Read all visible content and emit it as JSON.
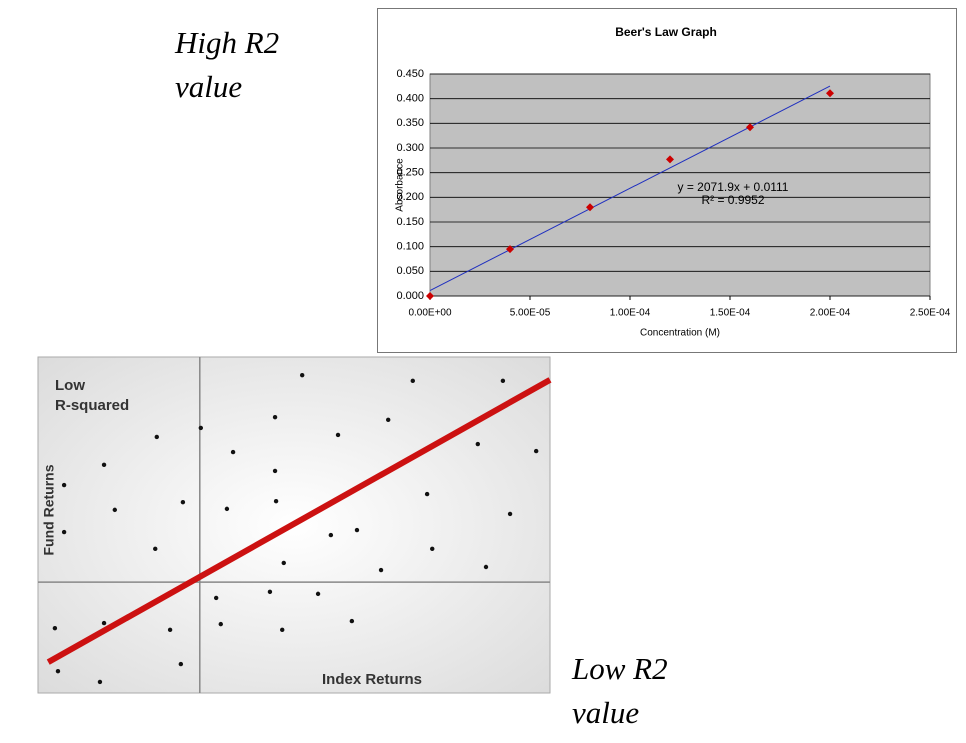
{
  "captions": [
    [
      "High R2",
      "value"
    ],
    [
      "Low R2",
      "value"
    ]
  ],
  "chart_data": [
    {
      "type": "scatter",
      "title": "Beer's Law Graph",
      "x_label": "Concentration (M)",
      "y_label": "Absorbance",
      "x": [
        0,
        4e-05,
        8e-05,
        0.00012,
        0.00016,
        0.0002
      ],
      "values": [
        0,
        0.095,
        0.18,
        0.277,
        0.342,
        0.411
      ],
      "color": "#cc0000",
      "trendline": {
        "slope": 2071.9,
        "intercept": 0.0111,
        "x": [
          0,
          0.0002
        ],
        "color": "#1f2fbf"
      },
      "annotations": [
        "y = 2071.9x + 0.0111",
        "R² = 0.9952"
      ],
      "xlim": [
        0,
        0.00025
      ],
      "xticks": [
        {
          "value": 0,
          "label": "0.00E+00"
        },
        {
          "value": 5e-05,
          "label": "5.00E-05"
        },
        {
          "value": 0.0001,
          "label": "1.00E-04"
        },
        {
          "value": 0.00015,
          "label": "1.50E-04"
        },
        {
          "value": 0.0002,
          "label": "2.00E-04"
        },
        {
          "value": 0.00025,
          "label": "2.50E-04"
        }
      ],
      "ylim": [
        0,
        0.45
      ],
      "yticks": [
        {
          "value": 0,
          "label": "0.000"
        },
        {
          "value": 0.05,
          "label": "0.050"
        },
        {
          "value": 0.1,
          "label": "0.100"
        },
        {
          "value": 0.15,
          "label": "0.150"
        },
        {
          "value": 0.2,
          "label": "0.200"
        },
        {
          "value": 0.25,
          "label": "0.250"
        },
        {
          "value": 0.3,
          "label": "0.300"
        },
        {
          "value": 0.35,
          "label": "0.350"
        },
        {
          "value": 0.4,
          "label": "0.400"
        },
        {
          "value": 0.45,
          "label": "0.450"
        }
      ],
      "grid": true
    },
    {
      "type": "scatter",
      "x_label": "Index Returns",
      "y_label": "Fund Returns",
      "annotations": [
        "Low",
        "R-squared"
      ],
      "x": [
        51.6,
        73.2,
        90.8,
        46.3,
        68.4,
        23.2,
        58.6,
        85.9,
        97.3,
        38.1,
        12.9,
        46.3,
        5.1,
        28.3,
        46.5,
        76.0,
        15.0,
        36.9,
        92.2,
        62.3,
        57.2,
        5.1,
        22.9,
        77.0,
        48.0,
        67.0,
        87.5,
        45.3,
        54.7,
        34.8,
        12.9,
        35.7,
        61.3,
        3.3,
        25.8,
        47.7,
        27.9,
        3.9,
        12.1,
        31.8
      ],
      "values": [
        94.6,
        92.9,
        92.9,
        82.1,
        81.3,
        76.2,
        76.8,
        74.1,
        72.0,
        71.7,
        67.9,
        66.1,
        61.9,
        56.8,
        57.1,
        59.2,
        54.5,
        54.8,
        53.3,
        48.5,
        47.0,
        47.9,
        42.9,
        42.9,
        38.7,
        36.6,
        37.5,
        30.1,
        29.5,
        28.3,
        20.8,
        20.5,
        21.4,
        19.3,
        18.8,
        18.8,
        8.6,
        6.5,
        3.3,
        78.9
      ],
      "color": "#111111",
      "fit_line": {
        "x": [
          2.0,
          100
        ],
        "y": [
          9.2,
          93.2
        ],
        "color": "#cc1111"
      },
      "reference_lines": {
        "x": 31.6,
        "y": 33.0
      },
      "xlim": [
        0,
        100
      ],
      "ylim": [
        0,
        100
      ]
    }
  ]
}
